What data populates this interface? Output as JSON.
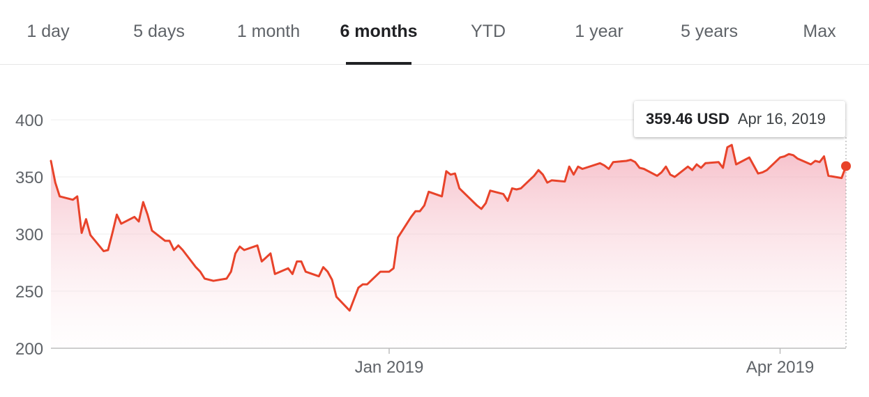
{
  "tabs": [
    {
      "label": "1 day",
      "active": false
    },
    {
      "label": "5 days",
      "active": false
    },
    {
      "label": "1 month",
      "active": false
    },
    {
      "label": "6 months",
      "active": true
    },
    {
      "label": "YTD",
      "active": false
    },
    {
      "label": "1 year",
      "active": false
    },
    {
      "label": "5 years",
      "active": false
    },
    {
      "label": "Max",
      "active": false
    }
  ],
  "tooltip": {
    "price": "359.46 USD",
    "date": "Apr 16, 2019"
  },
  "colors": {
    "line": "#e8432a",
    "fill_top": "#f3a9b7",
    "tab_active": "#202124",
    "gridline": "#eeeeee"
  },
  "chart_data": {
    "type": "area",
    "y_ticks": [
      200,
      250,
      300,
      350,
      400
    ],
    "ylim": [
      200,
      400
    ],
    "grid": true,
    "x_ticks": [
      {
        "label": "Jan 2019",
        "date": "2019-01-02"
      },
      {
        "label": "Apr 2019",
        "date": "2019-04-01"
      }
    ],
    "series": [
      {
        "values": [
          {
            "date": "2018-10-17",
            "value": 364
          },
          {
            "date": "2018-10-18",
            "value": 345
          },
          {
            "date": "2018-10-19",
            "value": 333
          },
          {
            "date": "2018-10-22",
            "value": 330
          },
          {
            "date": "2018-10-23",
            "value": 333
          },
          {
            "date": "2018-10-24",
            "value": 301
          },
          {
            "date": "2018-10-25",
            "value": 313
          },
          {
            "date": "2018-10-26",
            "value": 299
          },
          {
            "date": "2018-10-29",
            "value": 285
          },
          {
            "date": "2018-10-30",
            "value": 286
          },
          {
            "date": "2018-10-31",
            "value": 301
          },
          {
            "date": "2018-11-01",
            "value": 317
          },
          {
            "date": "2018-11-02",
            "value": 309
          },
          {
            "date": "2018-11-05",
            "value": 315
          },
          {
            "date": "2018-11-06",
            "value": 311
          },
          {
            "date": "2018-11-07",
            "value": 328
          },
          {
            "date": "2018-11-08",
            "value": 317
          },
          {
            "date": "2018-11-09",
            "value": 303
          },
          {
            "date": "2018-11-12",
            "value": 294
          },
          {
            "date": "2018-11-13",
            "value": 294
          },
          {
            "date": "2018-11-14",
            "value": 286
          },
          {
            "date": "2018-11-15",
            "value": 290
          },
          {
            "date": "2018-11-16",
            "value": 286
          },
          {
            "date": "2018-11-19",
            "value": 271
          },
          {
            "date": "2018-11-20",
            "value": 267
          },
          {
            "date": "2018-11-21",
            "value": 261
          },
          {
            "date": "2018-11-23",
            "value": 259
          },
          {
            "date": "2018-11-26",
            "value": 261
          },
          {
            "date": "2018-11-27",
            "value": 267
          },
          {
            "date": "2018-11-28",
            "value": 283
          },
          {
            "date": "2018-11-29",
            "value": 289
          },
          {
            "date": "2018-11-30",
            "value": 286
          },
          {
            "date": "2018-12-03",
            "value": 290
          },
          {
            "date": "2018-12-04",
            "value": 276
          },
          {
            "date": "2018-12-06",
            "value": 283
          },
          {
            "date": "2018-12-07",
            "value": 265
          },
          {
            "date": "2018-12-10",
            "value": 270
          },
          {
            "date": "2018-12-11",
            "value": 265
          },
          {
            "date": "2018-12-12",
            "value": 276
          },
          {
            "date": "2018-12-13",
            "value": 276
          },
          {
            "date": "2018-12-14",
            "value": 267
          },
          {
            "date": "2018-12-17",
            "value": 263
          },
          {
            "date": "2018-12-18",
            "value": 271
          },
          {
            "date": "2018-12-19",
            "value": 267
          },
          {
            "date": "2018-12-20",
            "value": 260
          },
          {
            "date": "2018-12-21",
            "value": 245
          },
          {
            "date": "2018-12-24",
            "value": 233
          },
          {
            "date": "2018-12-26",
            "value": 253
          },
          {
            "date": "2018-12-27",
            "value": 256
          },
          {
            "date": "2018-12-28",
            "value": 256
          },
          {
            "date": "2018-12-31",
            "value": 267
          },
          {
            "date": "2019-01-02",
            "value": 267
          },
          {
            "date": "2019-01-03",
            "value": 270
          },
          {
            "date": "2019-01-04",
            "value": 297
          },
          {
            "date": "2019-01-07",
            "value": 315
          },
          {
            "date": "2019-01-08",
            "value": 320
          },
          {
            "date": "2019-01-09",
            "value": 320
          },
          {
            "date": "2019-01-10",
            "value": 325
          },
          {
            "date": "2019-01-11",
            "value": 337
          },
          {
            "date": "2019-01-14",
            "value": 333
          },
          {
            "date": "2019-01-15",
            "value": 355
          },
          {
            "date": "2019-01-16",
            "value": 352
          },
          {
            "date": "2019-01-17",
            "value": 353
          },
          {
            "date": "2019-01-18",
            "value": 340
          },
          {
            "date": "2019-01-22",
            "value": 325
          },
          {
            "date": "2019-01-23",
            "value": 322
          },
          {
            "date": "2019-01-24",
            "value": 327
          },
          {
            "date": "2019-01-25",
            "value": 338
          },
          {
            "date": "2019-01-28",
            "value": 335
          },
          {
            "date": "2019-01-29",
            "value": 329
          },
          {
            "date": "2019-01-30",
            "value": 340
          },
          {
            "date": "2019-01-31",
            "value": 339
          },
          {
            "date": "2019-02-01",
            "value": 340
          },
          {
            "date": "2019-02-04",
            "value": 351
          },
          {
            "date": "2019-02-05",
            "value": 356
          },
          {
            "date": "2019-02-06",
            "value": 352
          },
          {
            "date": "2019-02-07",
            "value": 345
          },
          {
            "date": "2019-02-08",
            "value": 347
          },
          {
            "date": "2019-02-11",
            "value": 346
          },
          {
            "date": "2019-02-12",
            "value": 359
          },
          {
            "date": "2019-02-13",
            "value": 352
          },
          {
            "date": "2019-02-14",
            "value": 359
          },
          {
            "date": "2019-02-15",
            "value": 357
          },
          {
            "date": "2019-02-19",
            "value": 362
          },
          {
            "date": "2019-02-20",
            "value": 360
          },
          {
            "date": "2019-02-21",
            "value": 357
          },
          {
            "date": "2019-02-22",
            "value": 363
          },
          {
            "date": "2019-02-25",
            "value": 364
          },
          {
            "date": "2019-02-26",
            "value": 365
          },
          {
            "date": "2019-02-27",
            "value": 363
          },
          {
            "date": "2019-02-28",
            "value": 358
          },
          {
            "date": "2019-03-01",
            "value": 357
          },
          {
            "date": "2019-03-04",
            "value": 351
          },
          {
            "date": "2019-03-05",
            "value": 354
          },
          {
            "date": "2019-03-06",
            "value": 359
          },
          {
            "date": "2019-03-07",
            "value": 352
          },
          {
            "date": "2019-03-08",
            "value": 350
          },
          {
            "date": "2019-03-11",
            "value": 359
          },
          {
            "date": "2019-03-12",
            "value": 356
          },
          {
            "date": "2019-03-13",
            "value": 361
          },
          {
            "date": "2019-03-14",
            "value": 358
          },
          {
            "date": "2019-03-15",
            "value": 362
          },
          {
            "date": "2019-03-18",
            "value": 363
          },
          {
            "date": "2019-03-19",
            "value": 358
          },
          {
            "date": "2019-03-20",
            "value": 376
          },
          {
            "date": "2019-03-21",
            "value": 378
          },
          {
            "date": "2019-03-22",
            "value": 361
          },
          {
            "date": "2019-03-25",
            "value": 367
          },
          {
            "date": "2019-03-26",
            "value": 360
          },
          {
            "date": "2019-03-27",
            "value": 353
          },
          {
            "date": "2019-03-28",
            "value": 354
          },
          {
            "date": "2019-03-29",
            "value": 356
          },
          {
            "date": "2019-04-01",
            "value": 367
          },
          {
            "date": "2019-04-02",
            "value": 368
          },
          {
            "date": "2019-04-03",
            "value": 370
          },
          {
            "date": "2019-04-04",
            "value": 369
          },
          {
            "date": "2019-04-05",
            "value": 366
          },
          {
            "date": "2019-04-08",
            "value": 361
          },
          {
            "date": "2019-04-09",
            "value": 364
          },
          {
            "date": "2019-04-10",
            "value": 363
          },
          {
            "date": "2019-04-11",
            "value": 368
          },
          {
            "date": "2019-04-12",
            "value": 351
          },
          {
            "date": "2019-04-15",
            "value": 349
          },
          {
            "date": "2019-04-16",
            "value": 359.46
          }
        ]
      }
    ]
  }
}
